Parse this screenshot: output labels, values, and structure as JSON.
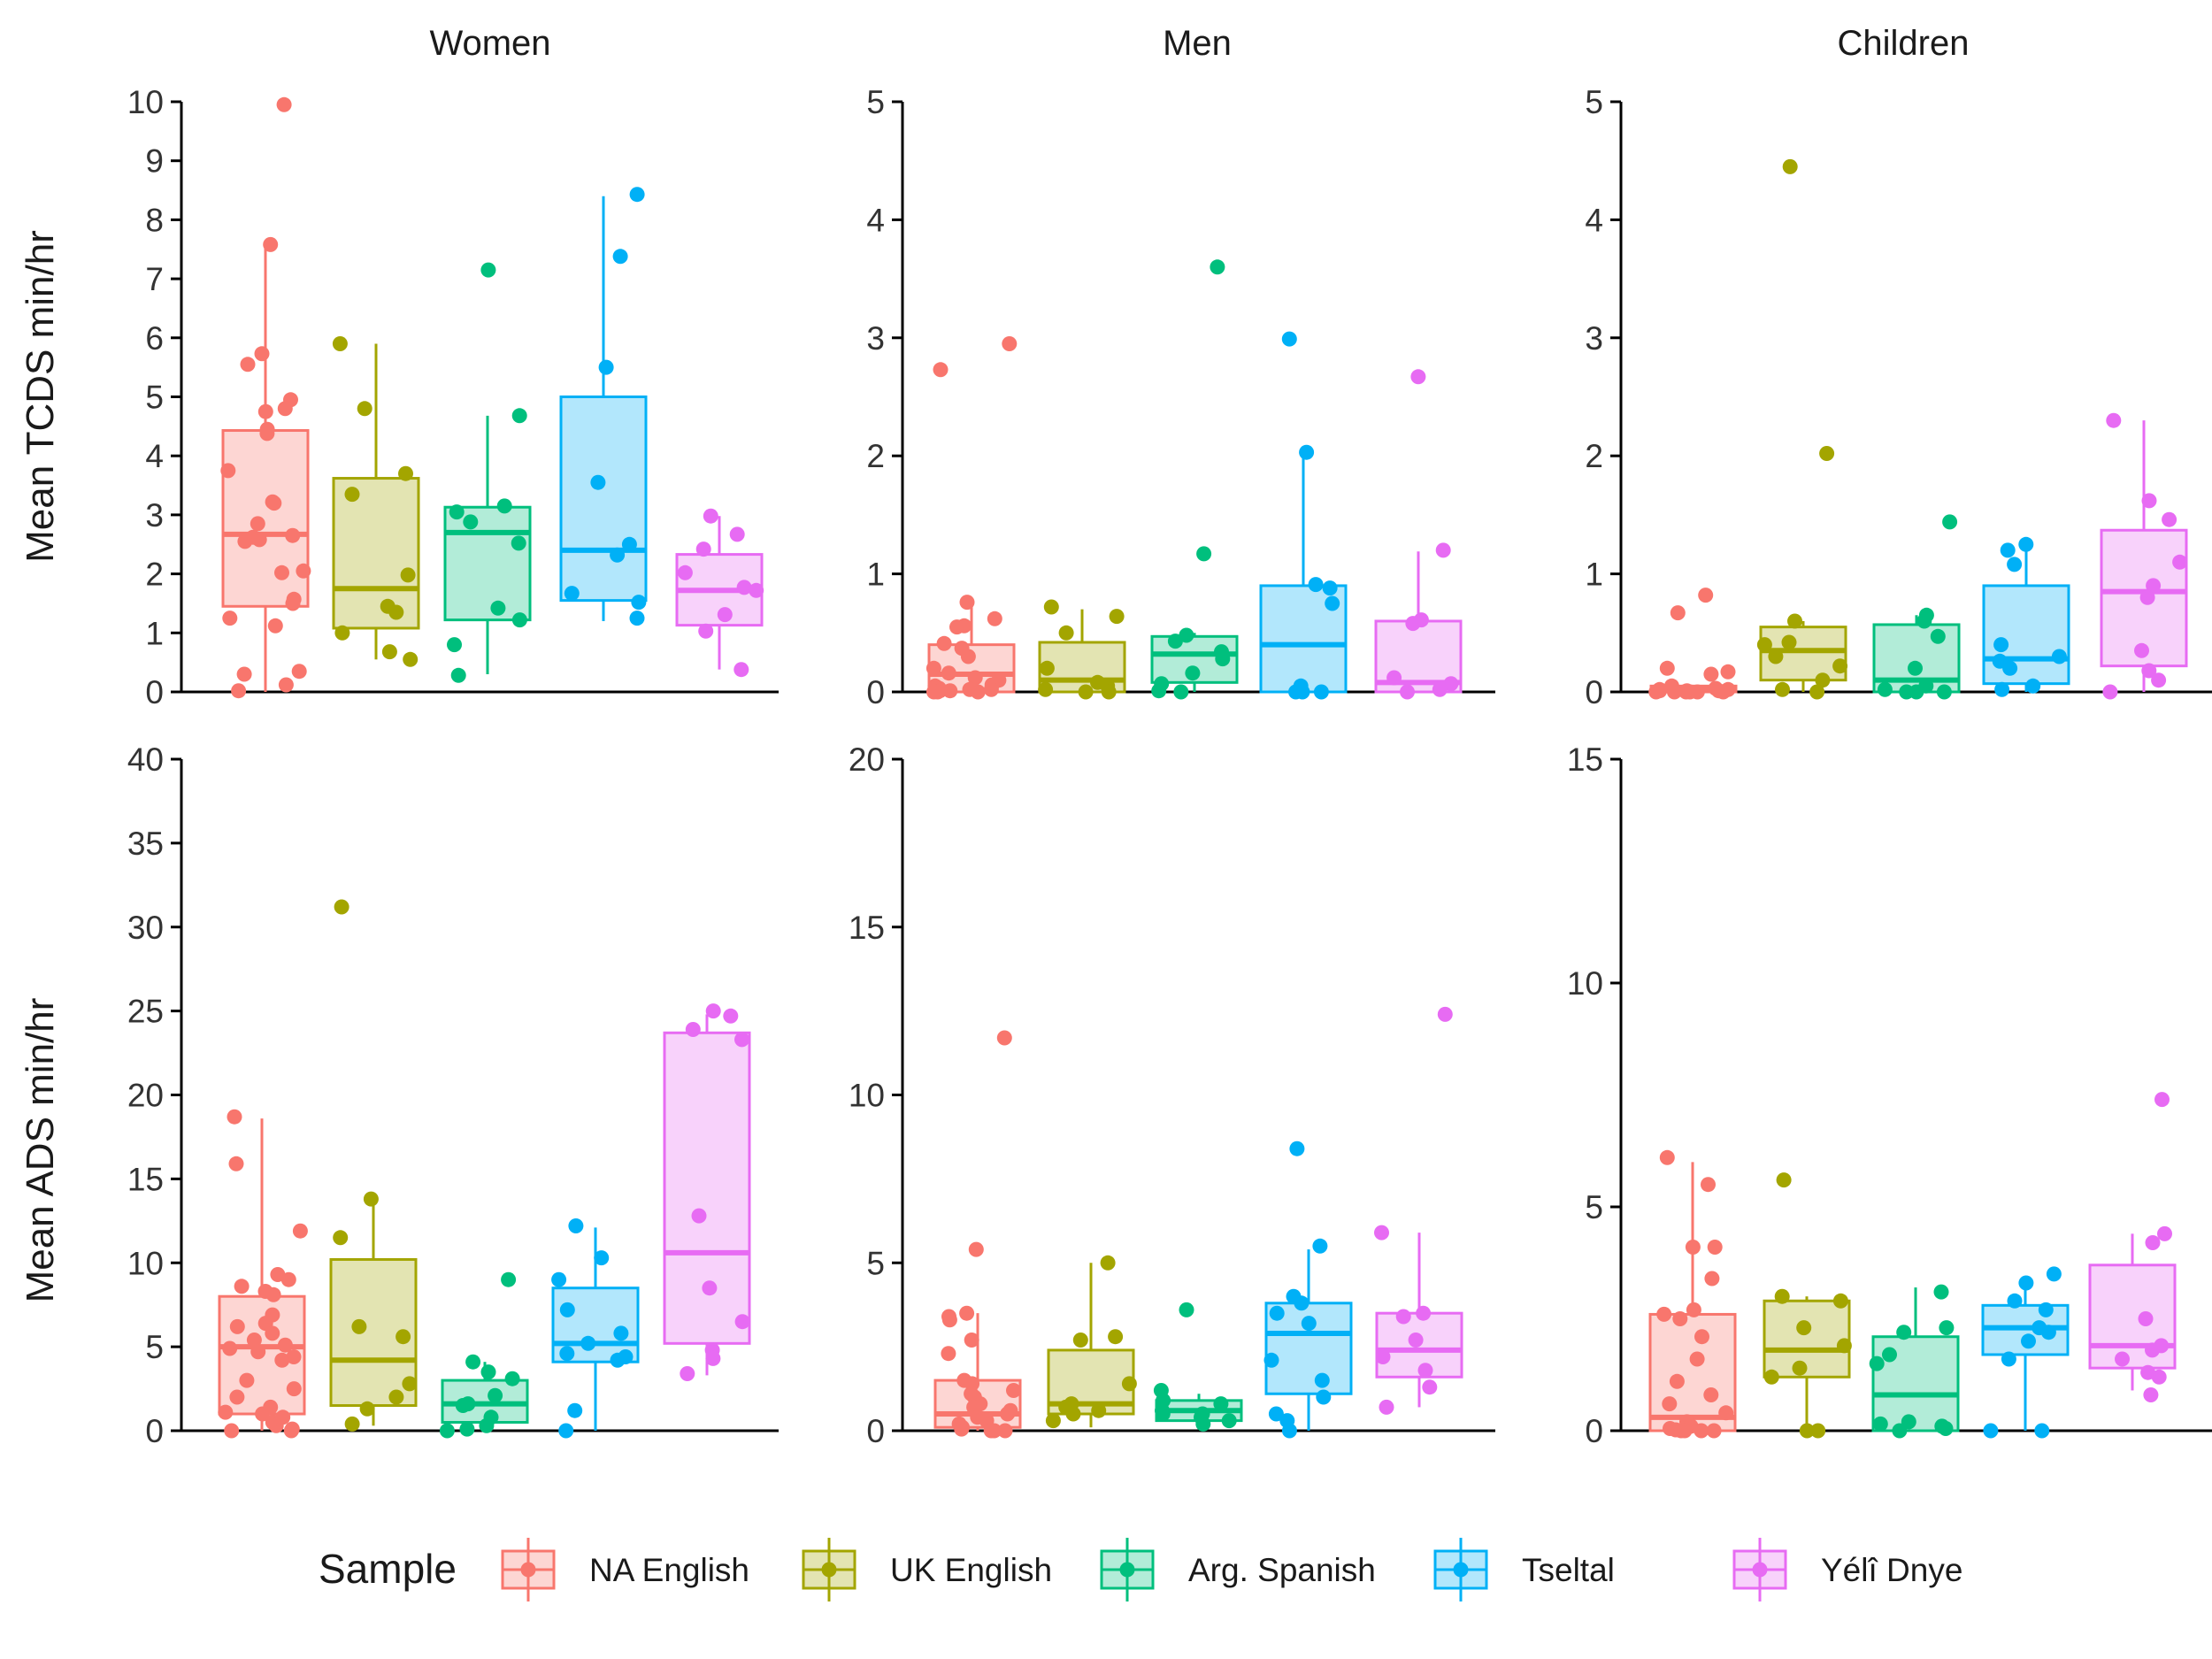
{
  "legend": {
    "title": "Sample",
    "entries": [
      "NA English",
      "UK English",
      "Arg. Spanish",
      "Tseltal",
      "Yélî Dnye"
    ],
    "placement": "bottom"
  },
  "colors": {
    "NA English": "#F8766D",
    "UK English": "#A3A500",
    "Arg. Spanish": "#00BF7D",
    "Tseltal": "#00B0F6",
    "Yélî Dnye": "#E76BF3"
  },
  "facets": [
    "Women",
    "Men",
    "Children"
  ],
  "rows": [
    "Mean TCDS min/hr",
    "Mean ADS min/hr"
  ],
  "chart_data": [
    {
      "type": "box",
      "facet": "Women",
      "ylabel": "Mean TCDS min/hr",
      "ylim": [
        0,
        10
      ],
      "yticks": [
        0,
        1,
        2,
        3,
        4,
        5,
        6,
        7,
        8,
        9,
        10
      ],
      "series": [
        {
          "name": "NA English",
          "q1": 1.45,
          "median": 2.67,
          "q3": 4.43,
          "lower": 0,
          "upper": 7.55,
          "points": [
            9.95,
            7.58,
            5.73,
            5.55,
            4.95,
            4.8,
            4.75,
            4.45,
            4.38,
            3.75,
            3.22,
            3.2,
            2.85,
            2.65,
            2.62,
            2.58,
            2.55,
            2.05,
            2.02,
            1.57,
            1.5,
            1.25,
            1.12,
            0.35,
            0.3,
            0.12,
            0.02
          ]
        },
        {
          "name": "UK English",
          "q1": 1.08,
          "median": 1.75,
          "q3": 3.62,
          "lower": 0.55,
          "upper": 5.9,
          "points": [
            5.9,
            4.8,
            3.7,
            3.35,
            1.98,
            1.45,
            1.35,
            1.0,
            0.68,
            0.55
          ]
        },
        {
          "name": "Arg. Spanish",
          "q1": 1.22,
          "median": 2.7,
          "q3": 3.13,
          "lower": 0.3,
          "upper": 4.68,
          "points": [
            7.15,
            4.68,
            3.15,
            3.05,
            2.88,
            2.52,
            1.42,
            1.22,
            0.8,
            0.28
          ]
        },
        {
          "name": "Tseltal",
          "q1": 1.55,
          "median": 2.4,
          "q3": 5.0,
          "lower": 1.2,
          "upper": 8.4,
          "points": [
            8.43,
            7.38,
            5.5,
            3.55,
            2.5,
            2.32,
            1.67,
            1.52,
            1.25
          ]
        },
        {
          "name": "Yélî Dnye",
          "q1": 1.13,
          "median": 1.72,
          "q3": 2.33,
          "lower": 0.38,
          "upper": 2.98,
          "points": [
            2.98,
            2.67,
            2.42,
            2.02,
            1.77,
            1.72,
            1.31,
            1.03,
            0.38
          ]
        }
      ]
    },
    {
      "type": "box",
      "facet": "Men",
      "ylabel": "Mean TCDS min/hr",
      "ylim": [
        0,
        5
      ],
      "yticks": [
        0,
        1,
        2,
        3,
        4,
        5
      ],
      "series": [
        {
          "name": "NA English",
          "q1": 0.0,
          "median": 0.15,
          "q3": 0.4,
          "lower": 0,
          "upper": 0.75,
          "points": [
            2.95,
            2.73,
            0.76,
            0.62,
            0.56,
            0.55,
            0.41,
            0.37,
            0.3,
            0.2,
            0.16,
            0.12,
            0.1,
            0.06,
            0.05,
            0.03,
            0.02,
            0.02,
            0.01,
            0.01,
            0.0,
            0.0,
            0.0
          ]
        },
        {
          "name": "UK English",
          "q1": 0.0,
          "median": 0.1,
          "q3": 0.42,
          "lower": 0,
          "upper": 0.7,
          "points": [
            0.72,
            0.64,
            0.5,
            0.2,
            0.08,
            0.05,
            0.02,
            0.0,
            0.0
          ]
        },
        {
          "name": "Arg. Spanish",
          "q1": 0.08,
          "median": 0.32,
          "q3": 0.47,
          "lower": 0,
          "upper": 0.5,
          "points": [
            3.6,
            1.17,
            0.48,
            0.43,
            0.34,
            0.28,
            0.16,
            0.07,
            0.01,
            0.0
          ]
        },
        {
          "name": "Tseltal",
          "q1": 0.0,
          "median": 0.4,
          "q3": 0.9,
          "lower": 0,
          "upper": 2.03,
          "points": [
            2.99,
            2.03,
            0.91,
            0.88,
            0.75,
            0.05,
            0.02,
            0.0,
            0.0,
            0.0
          ]
        },
        {
          "name": "Yélî Dnye",
          "q1": 0.0,
          "median": 0.08,
          "q3": 0.6,
          "lower": 0,
          "upper": 1.19,
          "points": [
            2.67,
            1.2,
            0.61,
            0.58,
            0.12,
            0.07,
            0.02,
            0.0
          ]
        }
      ]
    },
    {
      "type": "box",
      "facet": "Children",
      "ylabel": "Mean TCDS min/hr",
      "ylim": [
        0,
        5
      ],
      "yticks": [
        0,
        1,
        2,
        3,
        4,
        5
      ],
      "series": [
        {
          "name": "NA English",
          "q1": 0.0,
          "median": 0.02,
          "q3": 0.05,
          "lower": 0,
          "upper": 0.05,
          "points": [
            0.82,
            0.67,
            0.2,
            0.17,
            0.15,
            0.05,
            0.03,
            0.02,
            0.02,
            0.01,
            0.01,
            0.01,
            0.0,
            0.0,
            0.0,
            0.0,
            0.0,
            0.0
          ]
        },
        {
          "name": "UK English",
          "q1": 0.1,
          "median": 0.35,
          "q3": 0.55,
          "lower": 0,
          "upper": 0.6,
          "points": [
            4.45,
            2.02,
            0.6,
            0.42,
            0.4,
            0.3,
            0.22,
            0.1,
            0.02,
            0.0
          ]
        },
        {
          "name": "Arg. Spanish",
          "q1": 0.0,
          "median": 0.1,
          "q3": 0.57,
          "lower": 0,
          "upper": 0.65,
          "points": [
            1.44,
            0.65,
            0.6,
            0.47,
            0.2,
            0.05,
            0.02,
            0.0,
            0.0,
            0.0
          ]
        },
        {
          "name": "Tseltal",
          "q1": 0.07,
          "median": 0.28,
          "q3": 0.9,
          "lower": 0,
          "upper": 1.23,
          "points": [
            1.25,
            1.2,
            1.08,
            0.4,
            0.3,
            0.26,
            0.2,
            0.05,
            0.02
          ]
        },
        {
          "name": "Yélî Dnye",
          "q1": 0.22,
          "median": 0.85,
          "q3": 1.37,
          "lower": 0,
          "upper": 2.3,
          "points": [
            2.3,
            1.62,
            1.46,
            1.1,
            0.9,
            0.8,
            0.35,
            0.18,
            0.1,
            0.0
          ]
        }
      ]
    },
    {
      "type": "box",
      "facet": "Women",
      "ylabel": "Mean ADS min/hr",
      "ylim": [
        0,
        40
      ],
      "yticks": [
        0,
        5,
        10,
        15,
        20,
        25,
        30,
        35,
        40
      ],
      "series": [
        {
          "name": "NA English",
          "q1": 1.0,
          "median": 5.0,
          "q3": 8.0,
          "lower": 0,
          "upper": 18.6,
          "points": [
            18.7,
            15.9,
            11.9,
            9.3,
            9.0,
            8.6,
            8.3,
            8.1,
            6.9,
            6.4,
            6.2,
            5.8,
            5.4,
            5.1,
            4.9,
            4.7,
            4.4,
            4.2,
            3.0,
            2.5,
            2.0,
            1.4,
            1.1,
            1.0,
            0.8,
            0.5,
            0.3,
            0.1,
            0.0,
            0.0
          ]
        },
        {
          "name": "UK English",
          "q1": 1.5,
          "median": 4.2,
          "q3": 10.2,
          "lower": 0.3,
          "upper": 13.7,
          "points": [
            31.2,
            13.8,
            11.5,
            6.2,
            5.6,
            2.8,
            2.0,
            1.3,
            0.4
          ]
        },
        {
          "name": "Arg. Spanish",
          "q1": 0.5,
          "median": 1.6,
          "q3": 3.0,
          "lower": 0,
          "upper": 4.1,
          "points": [
            9.0,
            4.1,
            3.5,
            3.1,
            2.1,
            1.6,
            1.5,
            0.8,
            0.3,
            0.1,
            0.0
          ]
        },
        {
          "name": "Tseltal",
          "q1": 4.1,
          "median": 5.2,
          "q3": 8.5,
          "lower": 0,
          "upper": 12.1,
          "points": [
            12.2,
            10.3,
            9.0,
            7.2,
            5.8,
            5.2,
            4.6,
            4.4,
            4.2,
            1.2,
            0.0
          ]
        },
        {
          "name": "Yélî Dnye",
          "q1": 5.2,
          "median": 10.6,
          "q3": 23.7,
          "lower": 3.3,
          "upper": 24.8,
          "points": [
            25.0,
            24.7,
            23.9,
            23.3,
            12.8,
            8.5,
            6.5,
            4.8,
            4.3,
            3.4
          ]
        }
      ]
    },
    {
      "type": "box",
      "facet": "Men",
      "ylabel": "Mean ADS min/hr",
      "ylim": [
        0,
        20
      ],
      "yticks": [
        0,
        5,
        10,
        15,
        20
      ],
      "series": [
        {
          "name": "NA English",
          "q1": 0.1,
          "median": 0.5,
          "q3": 1.5,
          "lower": 0,
          "upper": 3.5,
          "points": [
            11.7,
            5.4,
            3.5,
            3.4,
            3.3,
            2.7,
            2.3,
            1.5,
            1.4,
            1.2,
            1.1,
            1.0,
            0.8,
            0.7,
            0.6,
            0.5,
            0.4,
            0.3,
            0.2,
            0.1,
            0.05,
            0.0,
            0.0,
            0.0
          ]
        },
        {
          "name": "UK English",
          "q1": 0.5,
          "median": 0.8,
          "q3": 2.4,
          "lower": 0.1,
          "upper": 5.0,
          "points": [
            5.0,
            2.8,
            2.7,
            1.4,
            0.8,
            0.7,
            0.6,
            0.5,
            0.3
          ]
        },
        {
          "name": "Arg. Spanish",
          "q1": 0.3,
          "median": 0.6,
          "q3": 0.9,
          "lower": 0.1,
          "upper": 1.1,
          "points": [
            3.6,
            1.2,
            0.9,
            0.8,
            0.6,
            0.5,
            0.5,
            0.4,
            0.3,
            0.2
          ]
        },
        {
          "name": "Tseltal",
          "q1": 1.1,
          "median": 2.9,
          "q3": 3.8,
          "lower": 0,
          "upper": 5.4,
          "points": [
            8.4,
            5.5,
            4.0,
            3.8,
            3.5,
            3.2,
            2.1,
            1.5,
            1.0,
            0.5,
            0.3,
            0.0
          ]
        },
        {
          "name": "Yélî Dnye",
          "q1": 1.6,
          "median": 2.4,
          "q3": 3.5,
          "lower": 0.7,
          "upper": 5.9,
          "points": [
            12.4,
            5.9,
            3.5,
            3.4,
            2.7,
            2.2,
            1.8,
            1.3,
            0.7
          ]
        }
      ]
    },
    {
      "type": "box",
      "facet": "Children",
      "ylabel": "Mean ADS min/hr",
      "ylim": [
        0,
        15
      ],
      "yticks": [
        0,
        5,
        10,
        15
      ],
      "series": [
        {
          "name": "NA English",
          "q1": 0.0,
          "median": 0.3,
          "q3": 2.6,
          "lower": 0,
          "upper": 6.0,
          "points": [
            6.1,
            5.5,
            4.1,
            4.1,
            3.4,
            2.7,
            2.6,
            2.5,
            2.1,
            1.6,
            1.1,
            0.8,
            0.6,
            0.4,
            0.2,
            0.1,
            0.05,
            0.02,
            0.0,
            0.0,
            0.0,
            0.0
          ]
        },
        {
          "name": "UK English",
          "q1": 1.2,
          "median": 1.8,
          "q3": 2.9,
          "lower": 0,
          "upper": 3.0,
          "points": [
            5.6,
            3.0,
            2.9,
            2.3,
            1.9,
            1.4,
            1.2,
            0.0,
            0.0
          ]
        },
        {
          "name": "Arg. Spanish",
          "q1": 0.0,
          "median": 0.8,
          "q3": 2.1,
          "lower": 0,
          "upper": 3.2,
          "points": [
            3.1,
            2.3,
            2.2,
            1.7,
            1.5,
            0.2,
            0.15,
            0.1,
            0.05,
            0.0
          ]
        },
        {
          "name": "Tseltal",
          "q1": 1.7,
          "median": 2.3,
          "q3": 2.8,
          "lower": 0,
          "upper": 3.3,
          "points": [
            3.5,
            3.3,
            2.9,
            2.7,
            2.3,
            2.2,
            2.0,
            1.6,
            0.0,
            0.0
          ]
        },
        {
          "name": "Yélî Dnye",
          "q1": 1.4,
          "median": 1.9,
          "q3": 3.7,
          "lower": 0.9,
          "upper": 4.4,
          "points": [
            7.4,
            4.4,
            4.2,
            2.5,
            1.9,
            1.8,
            1.6,
            1.3,
            1.2,
            0.8
          ]
        }
      ]
    }
  ]
}
